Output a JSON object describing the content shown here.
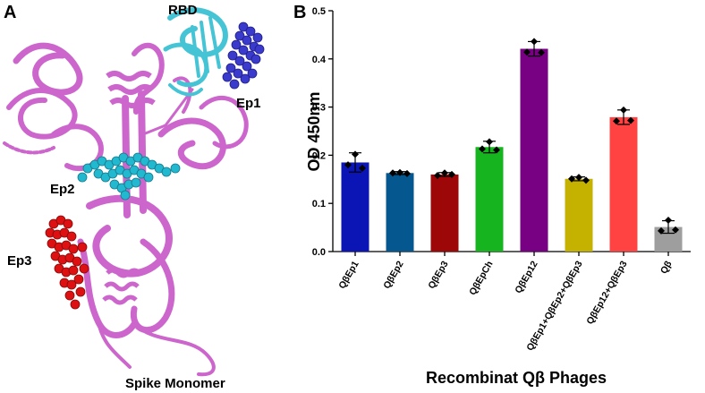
{
  "panel_a": {
    "letter": "A",
    "labels": {
      "rbd": "RBD",
      "ep1": "Ep1",
      "ep2": "Ep2",
      "ep3": "Ep3",
      "caption": "Spike Monomer"
    },
    "colors": {
      "ribbon": "#cc66cc",
      "rbd": "#44c4d4",
      "ep1": "#3a3acc",
      "ep2": "#22b8d0",
      "ep3": "#dd1111"
    }
  },
  "panel_b": {
    "letter": "B"
  },
  "chart_data": {
    "type": "bar",
    "xlabel": "Recombinat Qβ Phages",
    "ylabel": "OD 450nm",
    "ylim": [
      0,
      0.5
    ],
    "yticks": [
      "0.0",
      "0.1",
      "0.2",
      "0.3",
      "0.4",
      "0.5"
    ],
    "categories": [
      "QβEp1",
      "QβEp2",
      "QβEp3",
      "QβEpCh",
      "QβEp12",
      "QβEp1+QβEp2+QβEp3",
      "QβEp12+QβEp3",
      "Qβ"
    ],
    "values": [
      0.185,
      0.163,
      0.16,
      0.217,
      0.421,
      0.151,
      0.279,
      0.051
    ],
    "errors": [
      0.02,
      0.003,
      0.004,
      0.012,
      0.015,
      0.004,
      0.015,
      0.013
    ],
    "points": [
      [
        0.202,
        0.18,
        0.173
      ],
      [
        0.164,
        0.163,
        0.162
      ],
      [
        0.163,
        0.158,
        0.16
      ],
      [
        0.228,
        0.213,
        0.211
      ],
      [
        0.436,
        0.414,
        0.413
      ],
      [
        0.154,
        0.151,
        0.148
      ],
      [
        0.294,
        0.271,
        0.272
      ],
      [
        0.065,
        0.043,
        0.045
      ]
    ],
    "colors": [
      "#0b14b4",
      "#05578f",
      "#9e0707",
      "#16b41e",
      "#770083",
      "#c4b100",
      "#ff4343",
      "#9e9e9e"
    ]
  }
}
